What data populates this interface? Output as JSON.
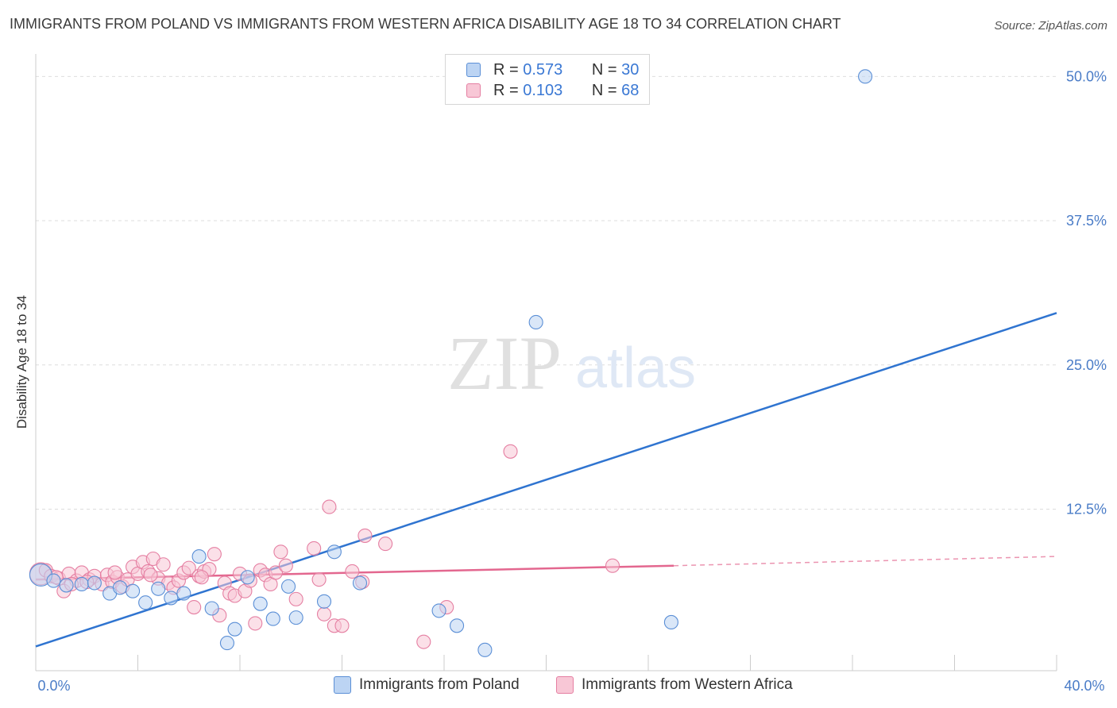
{
  "header": {
    "title": "IMMIGRANTS FROM POLAND VS IMMIGRANTS FROM WESTERN AFRICA DISABILITY AGE 18 TO 34 CORRELATION CHART",
    "source": "Source: ZipAtlas.com"
  },
  "colors": {
    "poland_fill": "#bcd4f3",
    "poland_stroke": "#5b8fd6",
    "poland_line": "#2f74d0",
    "africa_fill": "#f8c7d6",
    "africa_stroke": "#e57fa2",
    "africa_line": "#e3678f",
    "grid": "#dddddd",
    "tick_text": "#4a7cc7"
  },
  "legend": {
    "rows": [
      {
        "r_label": "R =",
        "r_value": "0.573",
        "n_label": "N =",
        "n_value": "30"
      },
      {
        "r_label": "R =",
        "r_value": "0.103",
        "n_label": "N =",
        "n_value": "68"
      }
    ],
    "bottom": [
      "Immigrants from Poland",
      "Immigrants from Western Africa"
    ]
  },
  "watermark": {
    "zip": "ZIP",
    "atlas": "atlas"
  },
  "chart_data": {
    "type": "scatter",
    "ylabel": "Disability Age 18 to 34",
    "xlabel": "",
    "xlim": [
      0,
      40
    ],
    "ylim": [
      -1.5,
      52.5
    ],
    "x_tick_labels": [
      "0.0%",
      "40.0%"
    ],
    "y_ticks": [
      12.5,
      25.0,
      37.5,
      50.0
    ],
    "y_tick_labels": [
      "12.5%",
      "25.0%",
      "37.5%",
      "50.0%"
    ],
    "grid": true,
    "series": [
      {
        "name": "Immigrants from Poland",
        "r": 0.573,
        "n": 30,
        "trend": {
          "x": [
            0,
            40
          ],
          "y": [
            0.6,
            29.5
          ]
        },
        "points": [
          {
            "x": 0.2,
            "y": 6.8,
            "big": true
          },
          {
            "x": 0.7,
            "y": 6.3
          },
          {
            "x": 1.2,
            "y": 5.9
          },
          {
            "x": 1.8,
            "y": 6.0
          },
          {
            "x": 2.3,
            "y": 6.1
          },
          {
            "x": 2.9,
            "y": 5.2
          },
          {
            "x": 3.3,
            "y": 5.7
          },
          {
            "x": 3.8,
            "y": 5.4
          },
          {
            "x": 4.3,
            "y": 4.4
          },
          {
            "x": 4.8,
            "y": 5.6
          },
          {
            "x": 5.3,
            "y": 4.8
          },
          {
            "x": 5.8,
            "y": 5.2
          },
          {
            "x": 6.4,
            "y": 8.4
          },
          {
            "x": 6.9,
            "y": 3.9
          },
          {
            "x": 7.5,
            "y": 0.9
          },
          {
            "x": 7.8,
            "y": 2.1
          },
          {
            "x": 8.3,
            "y": 6.6
          },
          {
            "x": 8.8,
            "y": 4.3
          },
          {
            "x": 9.3,
            "y": 3.0
          },
          {
            "x": 9.9,
            "y": 5.8
          },
          {
            "x": 10.2,
            "y": 3.1
          },
          {
            "x": 11.3,
            "y": 4.5
          },
          {
            "x": 11.7,
            "y": 8.8
          },
          {
            "x": 12.7,
            "y": 6.1
          },
          {
            "x": 15.8,
            "y": 3.7
          },
          {
            "x": 16.5,
            "y": 2.4
          },
          {
            "x": 17.6,
            "y": 0.3
          },
          {
            "x": 19.6,
            "y": 28.7
          },
          {
            "x": 24.9,
            "y": 2.7
          },
          {
            "x": 32.5,
            "y": 50.0
          }
        ]
      },
      {
        "name": "Immigrants from Western Africa",
        "r": 0.103,
        "n": 68,
        "trend": {
          "x": [
            0,
            25.0
          ],
          "y": [
            6.4,
            7.6
          ]
        },
        "trend_dashed": {
          "x": [
            25.0,
            40
          ],
          "y": [
            7.6,
            8.4
          ]
        },
        "points": [
          {
            "x": 0.2,
            "y": 6.9,
            "big": true
          },
          {
            "x": 0.4,
            "y": 7.2
          },
          {
            "x": 0.6,
            "y": 6.7
          },
          {
            "x": 0.9,
            "y": 6.5
          },
          {
            "x": 1.1,
            "y": 5.4
          },
          {
            "x": 1.3,
            "y": 6.9
          },
          {
            "x": 1.6,
            "y": 6.3
          },
          {
            "x": 1.8,
            "y": 7.0
          },
          {
            "x": 2.1,
            "y": 6.4
          },
          {
            "x": 2.3,
            "y": 6.7
          },
          {
            "x": 2.6,
            "y": 6.0
          },
          {
            "x": 2.8,
            "y": 6.8
          },
          {
            "x": 3.0,
            "y": 6.2
          },
          {
            "x": 3.2,
            "y": 6.6
          },
          {
            "x": 3.4,
            "y": 5.8
          },
          {
            "x": 3.6,
            "y": 6.4
          },
          {
            "x": 3.8,
            "y": 7.5
          },
          {
            "x": 4.0,
            "y": 6.9
          },
          {
            "x": 4.2,
            "y": 7.9
          },
          {
            "x": 4.4,
            "y": 7.1
          },
          {
            "x": 4.6,
            "y": 8.2
          },
          {
            "x": 4.8,
            "y": 6.5
          },
          {
            "x": 5.0,
            "y": 7.7
          },
          {
            "x": 5.2,
            "y": 6.1
          },
          {
            "x": 5.4,
            "y": 5.7
          },
          {
            "x": 5.6,
            "y": 6.3
          },
          {
            "x": 5.8,
            "y": 7.0
          },
          {
            "x": 6.0,
            "y": 7.4
          },
          {
            "x": 6.2,
            "y": 4.0
          },
          {
            "x": 6.4,
            "y": 6.7
          },
          {
            "x": 6.6,
            "y": 7.1
          },
          {
            "x": 6.8,
            "y": 7.3
          },
          {
            "x": 7.0,
            "y": 8.6
          },
          {
            "x": 7.2,
            "y": 3.3
          },
          {
            "x": 7.4,
            "y": 6.1
          },
          {
            "x": 7.6,
            "y": 5.2
          },
          {
            "x": 7.8,
            "y": 5.0
          },
          {
            "x": 8.0,
            "y": 6.9
          },
          {
            "x": 8.2,
            "y": 5.4
          },
          {
            "x": 8.4,
            "y": 6.3
          },
          {
            "x": 8.6,
            "y": 2.6
          },
          {
            "x": 8.8,
            "y": 7.2
          },
          {
            "x": 9.0,
            "y": 6.8
          },
          {
            "x": 9.2,
            "y": 6.0
          },
          {
            "x": 9.4,
            "y": 7.0
          },
          {
            "x": 9.6,
            "y": 8.8
          },
          {
            "x": 9.8,
            "y": 7.6
          },
          {
            "x": 10.2,
            "y": 4.7
          },
          {
            "x": 10.9,
            "y": 9.1
          },
          {
            "x": 11.1,
            "y": 6.4
          },
          {
            "x": 11.3,
            "y": 3.4
          },
          {
            "x": 11.5,
            "y": 12.7
          },
          {
            "x": 11.7,
            "y": 2.4
          },
          {
            "x": 12.0,
            "y": 2.4
          },
          {
            "x": 12.4,
            "y": 7.1
          },
          {
            "x": 12.8,
            "y": 6.2
          },
          {
            "x": 12.9,
            "y": 10.2
          },
          {
            "x": 13.7,
            "y": 9.5
          },
          {
            "x": 15.2,
            "y": 1.0
          },
          {
            "x": 16.1,
            "y": 4.0
          },
          {
            "x": 18.6,
            "y": 17.5
          },
          {
            "x": 22.6,
            "y": 7.6
          },
          {
            "x": 1.4,
            "y": 6.0
          },
          {
            "x": 2.0,
            "y": 6.2
          },
          {
            "x": 0.8,
            "y": 6.6
          },
          {
            "x": 3.1,
            "y": 7.0
          },
          {
            "x": 4.5,
            "y": 6.8
          },
          {
            "x": 6.5,
            "y": 6.6
          }
        ]
      }
    ]
  }
}
